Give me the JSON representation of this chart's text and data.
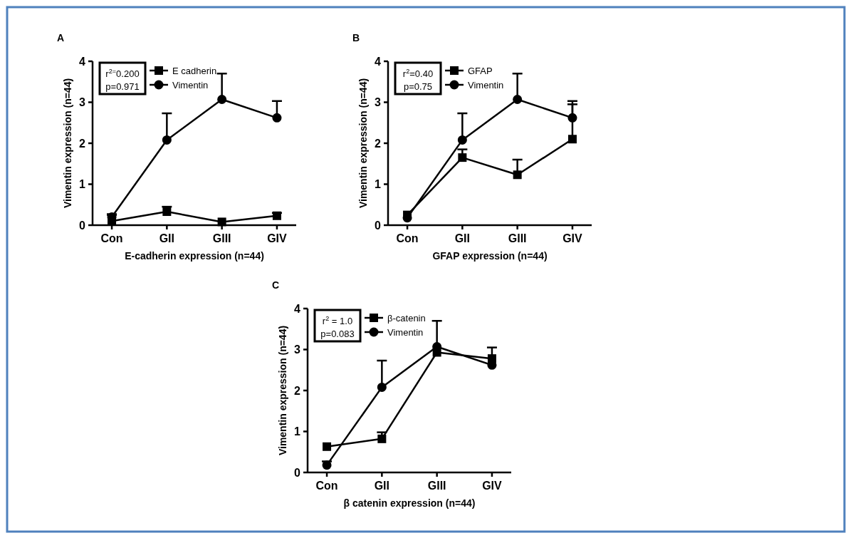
{
  "chart_data": [
    {
      "type": "line",
      "title": "A",
      "xlabel": "E-cadherin expression (n=44)",
      "ylabel": "Vimentin expression (n=44)",
      "categories": [
        "Con",
        "GII",
        "GIII",
        "GIV"
      ],
      "ylim": [
        0,
        4
      ],
      "yticks": [
        0,
        1,
        2,
        3,
        4
      ],
      "legend": "top left",
      "annotations": [
        "r$^{2=}$0.200",
        "p=0.971"
      ],
      "series": [
        {
          "name": "E cadherin",
          "color": "#000000",
          "marker": "square",
          "values": [
            0.1,
            0.33,
            0.08,
            0.23
          ],
          "errors": [
            [
              0.1,
              0.25
            ],
            [
              0.33,
              0.45
            ],
            null,
            [
              0.23,
              0.3
            ]
          ]
        },
        {
          "name": "Vimentin",
          "color": "#000000",
          "marker": "circle",
          "values": [
            0.2,
            2.08,
            3.07,
            2.62
          ],
          "errors": [
            [
              0.2,
              0.27
            ],
            [
              2.08,
              2.73
            ],
            [
              3.07,
              3.7
            ],
            [
              2.62,
              3.03
            ]
          ]
        }
      ]
    },
    {
      "type": "line",
      "title": "B",
      "xlabel": "GFAP expression (n=44)",
      "ylabel": "Vimentin expression (n=44)",
      "categories": [
        "Con",
        "GII",
        "GIII",
        "GIV"
      ],
      "ylim": [
        0,
        4
      ],
      "yticks": [
        0,
        1,
        2,
        3,
        4
      ],
      "legend": "top left",
      "annotations": [
        "r$^{2}$=0.40",
        "p=0.75"
      ],
      "series": [
        {
          "name": "GFAP",
          "color": "#000000",
          "marker": "square",
          "values": [
            0.25,
            1.65,
            1.23,
            2.1
          ],
          "errors": [
            null,
            [
              1.65,
              1.85
            ],
            [
              1.23,
              1.6
            ],
            [
              2.1,
              2.95
            ]
          ]
        },
        {
          "name": "Vimentin",
          "color": "#000000",
          "marker": "circle",
          "values": [
            0.18,
            2.08,
            3.07,
            2.62
          ],
          "errors": [
            null,
            [
              2.08,
              2.73
            ],
            [
              3.07,
              3.7
            ],
            [
              2.62,
              3.03
            ]
          ]
        }
      ]
    },
    {
      "type": "line",
      "title": "C",
      "xlabel": "β catenin expression (n=44)",
      "ylabel": "Vimentin expression (n=44)",
      "categories": [
        "Con",
        "GII",
        "GIII",
        "GIV"
      ],
      "ylim": [
        0,
        4
      ],
      "yticks": [
        0,
        1,
        2,
        3,
        4
      ],
      "legend": "top left",
      "annotations": [
        "r$^{2}$ = 1.0",
        "p=0.083"
      ],
      "series": [
        {
          "name": "β-catenin",
          "color": "#000000",
          "marker": "square",
          "values": [
            0.63,
            0.82,
            2.93,
            2.78
          ],
          "errors": [
            null,
            [
              0.82,
              0.98
            ],
            null,
            [
              2.78,
              3.05
            ]
          ]
        },
        {
          "name": "Vimentin",
          "color": "#000000",
          "marker": "circle",
          "values": [
            0.18,
            2.08,
            3.07,
            2.62
          ],
          "errors": [
            [
              0.18,
              0.27
            ],
            [
              2.08,
              2.73
            ],
            [
              3.07,
              3.7
            ],
            null
          ]
        }
      ]
    }
  ]
}
